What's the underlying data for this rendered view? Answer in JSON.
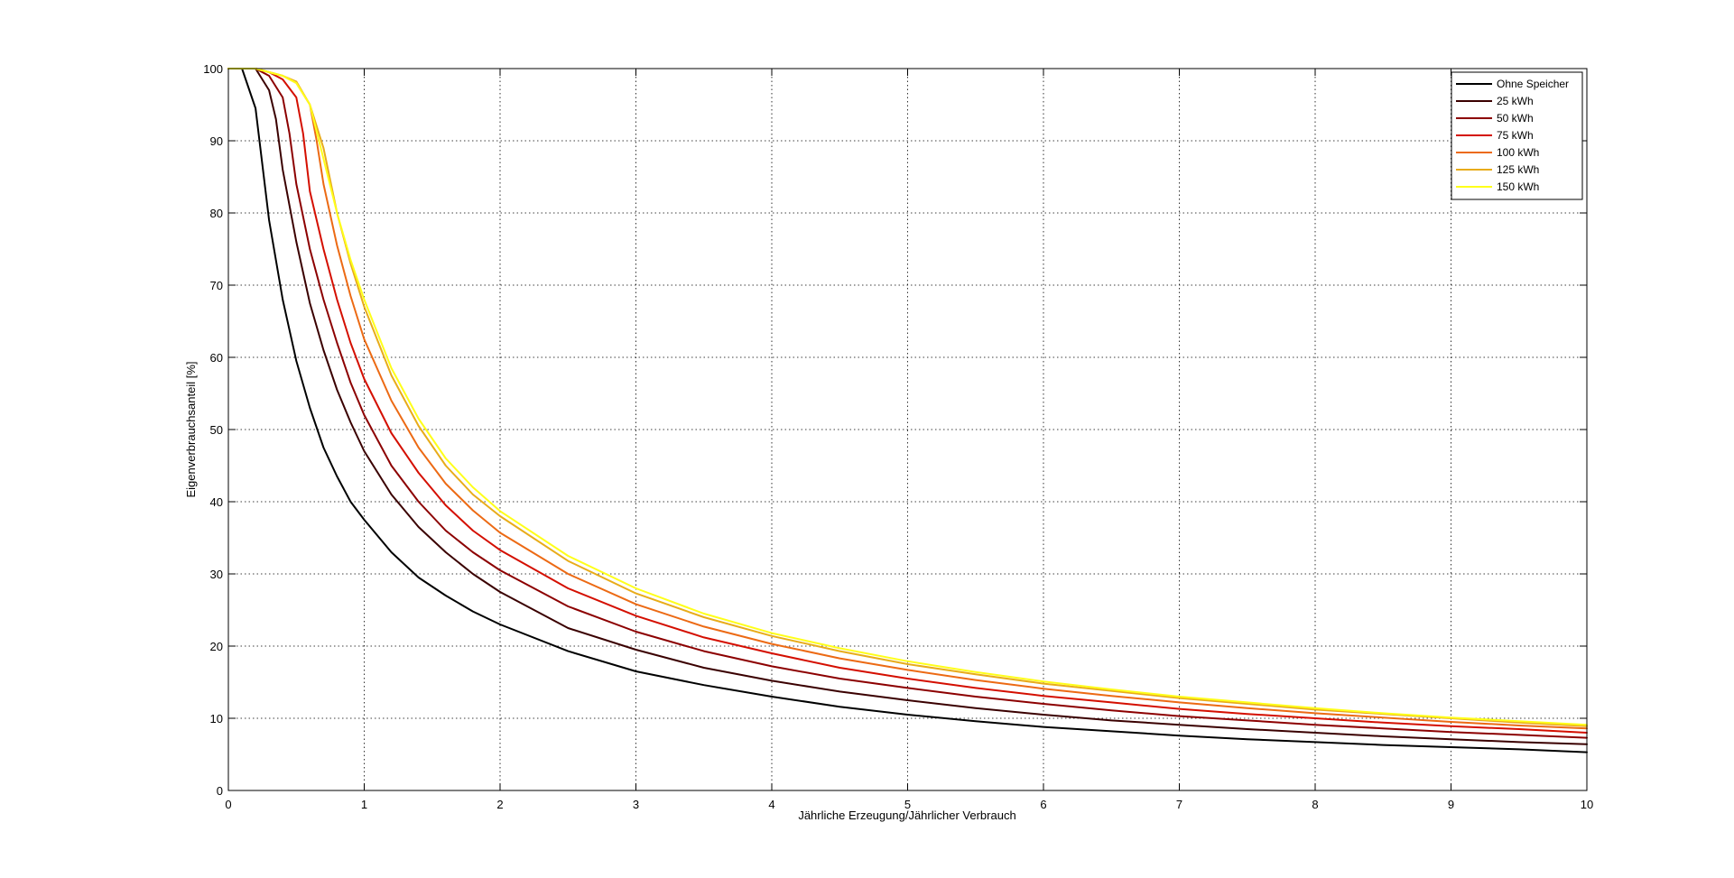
{
  "chart_data": {
    "type": "line",
    "title": "",
    "xlabel": "Jährliche Erzeugung/Jährlicher Verbrauch",
    "ylabel": "Eigenverbrauchsanteil [%]",
    "xlim": [
      0,
      10
    ],
    "ylim": [
      0,
      100
    ],
    "xticks": [
      0,
      1,
      2,
      3,
      4,
      5,
      6,
      7,
      8,
      9,
      10
    ],
    "yticks": [
      0,
      10,
      20,
      30,
      40,
      50,
      60,
      70,
      80,
      90,
      100
    ],
    "grid": true,
    "legend_position": "top-right",
    "series": [
      {
        "name": "Ohne Speicher",
        "color": "#000000",
        "points": [
          [
            0,
            100
          ],
          [
            0.1,
            100
          ],
          [
            0.2,
            94.5
          ],
          [
            0.3,
            79
          ],
          [
            0.4,
            68
          ],
          [
            0.5,
            59.5
          ],
          [
            0.6,
            53
          ],
          [
            0.7,
            47.5
          ],
          [
            0.8,
            43.5
          ],
          [
            0.9,
            40
          ],
          [
            1,
            37.5
          ],
          [
            1.2,
            33
          ],
          [
            1.4,
            29.5
          ],
          [
            1.6,
            27
          ],
          [
            1.8,
            24.8
          ],
          [
            2,
            23
          ],
          [
            2.5,
            19.3
          ],
          [
            3,
            16.5
          ],
          [
            3.5,
            14.6
          ],
          [
            4,
            13
          ],
          [
            4.5,
            11.6
          ],
          [
            5,
            10.5
          ],
          [
            5.5,
            9.6
          ],
          [
            6,
            8.8
          ],
          [
            6.5,
            8.2
          ],
          [
            7,
            7.6
          ],
          [
            7.5,
            7.1
          ],
          [
            8,
            6.7
          ],
          [
            8.5,
            6.3
          ],
          [
            9,
            6
          ],
          [
            9.5,
            5.7
          ],
          [
            10,
            5.3
          ]
        ]
      },
      {
        "name": "25 kWh",
        "color": "#3a0000",
        "points": [
          [
            0,
            100
          ],
          [
            0.2,
            100
          ],
          [
            0.3,
            97
          ],
          [
            0.35,
            93
          ],
          [
            0.4,
            86
          ],
          [
            0.5,
            76
          ],
          [
            0.6,
            67.5
          ],
          [
            0.7,
            61
          ],
          [
            0.8,
            55.5
          ],
          [
            0.9,
            51
          ],
          [
            1,
            47
          ],
          [
            1.2,
            41
          ],
          [
            1.4,
            36.5
          ],
          [
            1.6,
            33
          ],
          [
            1.8,
            30
          ],
          [
            2,
            27.5
          ],
          [
            2.5,
            22.5
          ],
          [
            3,
            19.5
          ],
          [
            3.5,
            17
          ],
          [
            4,
            15.2
          ],
          [
            4.5,
            13.7
          ],
          [
            5,
            12.5
          ],
          [
            5.5,
            11.4
          ],
          [
            6,
            10.5
          ],
          [
            6.5,
            9.7
          ],
          [
            7,
            9.1
          ],
          [
            7.5,
            8.5
          ],
          [
            8,
            8
          ],
          [
            8.5,
            7.5
          ],
          [
            9,
            7.1
          ],
          [
            9.5,
            6.7
          ],
          [
            10,
            6.4
          ]
        ]
      },
      {
        "name": "50 kWh",
        "color": "#8c0000",
        "points": [
          [
            0,
            100
          ],
          [
            0.2,
            100
          ],
          [
            0.3,
            99
          ],
          [
            0.4,
            96
          ],
          [
            0.45,
            91
          ],
          [
            0.5,
            84
          ],
          [
            0.6,
            75
          ],
          [
            0.7,
            68
          ],
          [
            0.8,
            62
          ],
          [
            0.9,
            56.5
          ],
          [
            1,
            52
          ],
          [
            1.2,
            45
          ],
          [
            1.4,
            40
          ],
          [
            1.6,
            36
          ],
          [
            1.8,
            33
          ],
          [
            2,
            30.5
          ],
          [
            2.5,
            25.5
          ],
          [
            3,
            22
          ],
          [
            3.5,
            19.3
          ],
          [
            4,
            17.2
          ],
          [
            4.5,
            15.5
          ],
          [
            5,
            14.2
          ],
          [
            5.5,
            13
          ],
          [
            6,
            12
          ],
          [
            6.5,
            11.1
          ],
          [
            7,
            10.3
          ],
          [
            7.5,
            9.7
          ],
          [
            8,
            9.1
          ],
          [
            8.5,
            8.6
          ],
          [
            9,
            8.1
          ],
          [
            9.5,
            7.7
          ],
          [
            10,
            7.3
          ]
        ]
      },
      {
        "name": "75 kWh",
        "color": "#d40f00",
        "points": [
          [
            0,
            100
          ],
          [
            0.2,
            100
          ],
          [
            0.3,
            99.5
          ],
          [
            0.4,
            98.5
          ],
          [
            0.5,
            96
          ],
          [
            0.55,
            91
          ],
          [
            0.6,
            83
          ],
          [
            0.7,
            75
          ],
          [
            0.8,
            68
          ],
          [
            0.9,
            62
          ],
          [
            1,
            57
          ],
          [
            1.2,
            49.5
          ],
          [
            1.4,
            44
          ],
          [
            1.6,
            39.5
          ],
          [
            1.8,
            36
          ],
          [
            2,
            33.3
          ],
          [
            2.5,
            28
          ],
          [
            3,
            24.2
          ],
          [
            3.5,
            21.2
          ],
          [
            4,
            19
          ],
          [
            4.5,
            17
          ],
          [
            5,
            15.5
          ],
          [
            5.5,
            14.2
          ],
          [
            6,
            13.1
          ],
          [
            6.5,
            12.2
          ],
          [
            7,
            11.3
          ],
          [
            7.5,
            10.6
          ],
          [
            8,
            10
          ],
          [
            8.5,
            9.4
          ],
          [
            9,
            8.9
          ],
          [
            9.5,
            8.5
          ],
          [
            10,
            8
          ]
        ]
      },
      {
        "name": "100 kWh",
        "color": "#ec6a14",
        "points": [
          [
            0,
            100
          ],
          [
            0.2,
            100
          ],
          [
            0.3,
            99.5
          ],
          [
            0.4,
            99
          ],
          [
            0.5,
            98
          ],
          [
            0.6,
            95
          ],
          [
            0.65,
            90
          ],
          [
            0.7,
            84
          ],
          [
            0.8,
            75.5
          ],
          [
            0.9,
            68.5
          ],
          [
            1,
            62.5
          ],
          [
            1.2,
            54
          ],
          [
            1.4,
            47.5
          ],
          [
            1.6,
            42.5
          ],
          [
            1.8,
            38.8
          ],
          [
            2,
            35.7
          ],
          [
            2.5,
            30
          ],
          [
            3,
            25.8
          ],
          [
            3.5,
            22.7
          ],
          [
            4,
            20.3
          ],
          [
            4.5,
            18.3
          ],
          [
            5,
            16.7
          ],
          [
            5.5,
            15.3
          ],
          [
            6,
            14.1
          ],
          [
            6.5,
            13.1
          ],
          [
            7,
            12.2
          ],
          [
            7.5,
            11.4
          ],
          [
            8,
            10.7
          ],
          [
            8.5,
            10.1
          ],
          [
            9,
            9.5
          ],
          [
            9.5,
            9
          ],
          [
            10,
            8.6
          ]
        ]
      },
      {
        "name": "125 kWh",
        "color": "#e8ac1a",
        "points": [
          [
            0,
            100
          ],
          [
            0.2,
            100
          ],
          [
            0.3,
            99.5
          ],
          [
            0.4,
            99
          ],
          [
            0.5,
            98.2
          ],
          [
            0.6,
            95
          ],
          [
            0.7,
            89
          ],
          [
            0.8,
            80
          ],
          [
            0.9,
            73
          ],
          [
            1,
            67
          ],
          [
            1.2,
            57.5
          ],
          [
            1.4,
            50.5
          ],
          [
            1.6,
            45
          ],
          [
            1.8,
            41
          ],
          [
            2,
            38
          ],
          [
            2.5,
            31.8
          ],
          [
            3,
            27.3
          ],
          [
            3.5,
            24
          ],
          [
            4,
            21.4
          ],
          [
            4.5,
            19.3
          ],
          [
            5,
            17.5
          ],
          [
            5.5,
            16.1
          ],
          [
            6,
            14.8
          ],
          [
            6.5,
            13.8
          ],
          [
            7,
            12.8
          ],
          [
            7.5,
            12
          ],
          [
            8,
            11.2
          ],
          [
            8.5,
            10.6
          ],
          [
            9,
            10
          ],
          [
            9.5,
            9.4
          ],
          [
            10,
            8.9
          ]
        ]
      },
      {
        "name": "150 kWh",
        "color": "#ffff1a",
        "points": [
          [
            0,
            100
          ],
          [
            0.2,
            100
          ],
          [
            0.3,
            99.5
          ],
          [
            0.4,
            99
          ],
          [
            0.5,
            98
          ],
          [
            0.6,
            95
          ],
          [
            0.7,
            87.5
          ],
          [
            0.8,
            80
          ],
          [
            0.9,
            73.5
          ],
          [
            1,
            68
          ],
          [
            1.2,
            58.5
          ],
          [
            1.4,
            51.5
          ],
          [
            1.6,
            46
          ],
          [
            1.8,
            42
          ],
          [
            2,
            38.7
          ],
          [
            2.5,
            32.5
          ],
          [
            3,
            28
          ],
          [
            3.5,
            24.5
          ],
          [
            4,
            21.8
          ],
          [
            4.5,
            19.7
          ],
          [
            5,
            17.9
          ],
          [
            5.5,
            16.4
          ],
          [
            6,
            15.1
          ],
          [
            6.5,
            14
          ],
          [
            7,
            13
          ],
          [
            7.5,
            12.2
          ],
          [
            8,
            11.4
          ],
          [
            8.5,
            10.7
          ],
          [
            9,
            10.1
          ],
          [
            9.5,
            9.6
          ],
          [
            10,
            9.1
          ]
        ]
      }
    ]
  }
}
